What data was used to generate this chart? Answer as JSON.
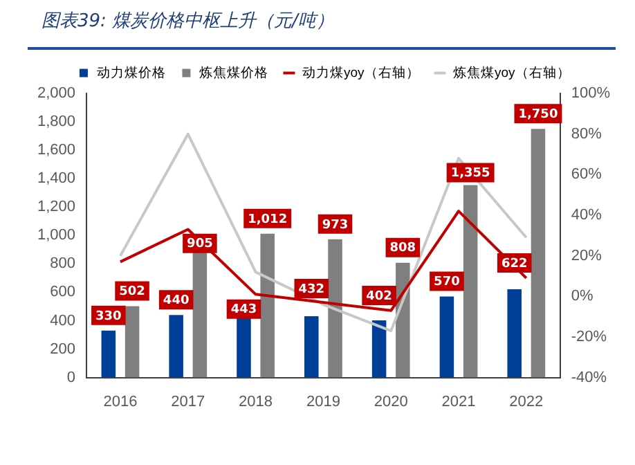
{
  "chart_data": {
    "type": "bar",
    "title": "图表39: 煤炭价格中枢上升（元/吨）",
    "categories": [
      "2016",
      "2017",
      "2018",
      "2019",
      "2020",
      "2021",
      "2022"
    ],
    "series": [
      {
        "name": "动力煤价格",
        "color": "#003f97",
        "values": [
          330,
          440,
          443,
          432,
          402,
          570,
          622
        ],
        "value_labels": [
          "330",
          "440",
          "443",
          "432",
          "402",
          "570",
          "622"
        ]
      },
      {
        "name": "炼焦煤价格",
        "color": "#7f7f7f",
        "values": [
          502,
          905,
          1012,
          973,
          808,
          1355,
          1750
        ],
        "value_labels": [
          "502",
          "905",
          "1,012",
          "973",
          "808",
          "1,355",
          "1,750"
        ]
      },
      {
        "name": "动力煤yoy（右轴）",
        "type": "line",
        "axis": "y2",
        "color": "#c00000",
        "values": [
          17,
          33,
          1,
          -3,
          -7,
          42,
          9
        ]
      },
      {
        "name": "炼焦煤yoy（右轴）",
        "type": "line",
        "axis": "y2",
        "color": "#c8c8c8",
        "values": [
          20,
          80,
          12,
          -4,
          -17,
          68,
          29
        ]
      }
    ],
    "ylim": [
      0,
      2000
    ],
    "yticks": [
      0,
      200,
      400,
      600,
      800,
      {
        "value": 1000,
        "label": "1,000"
      },
      {
        "value": 1200,
        "label": "1,200"
      },
      {
        "value": 1400,
        "label": "1,400"
      },
      {
        "value": 1600,
        "label": "1,600"
      },
      {
        "value": 1800,
        "label": "1,800"
      },
      {
        "value": 2000,
        "label": "2,000"
      }
    ],
    "y2lim": [
      -40,
      100
    ],
    "y2ticks": [
      {
        "value": -40,
        "label": "-40%"
      },
      {
        "value": -20,
        "label": "-20%"
      },
      {
        "value": 0,
        "label": "0%"
      },
      {
        "value": 20,
        "label": "20%"
      },
      {
        "value": 40,
        "label": "40%"
      },
      {
        "value": 60,
        "label": "60%"
      },
      {
        "value": 80,
        "label": "80%"
      },
      {
        "value": 100,
        "label": "100%"
      }
    ],
    "grid": false,
    "legend": "top",
    "marker": "none",
    "line_style": "solid"
  }
}
